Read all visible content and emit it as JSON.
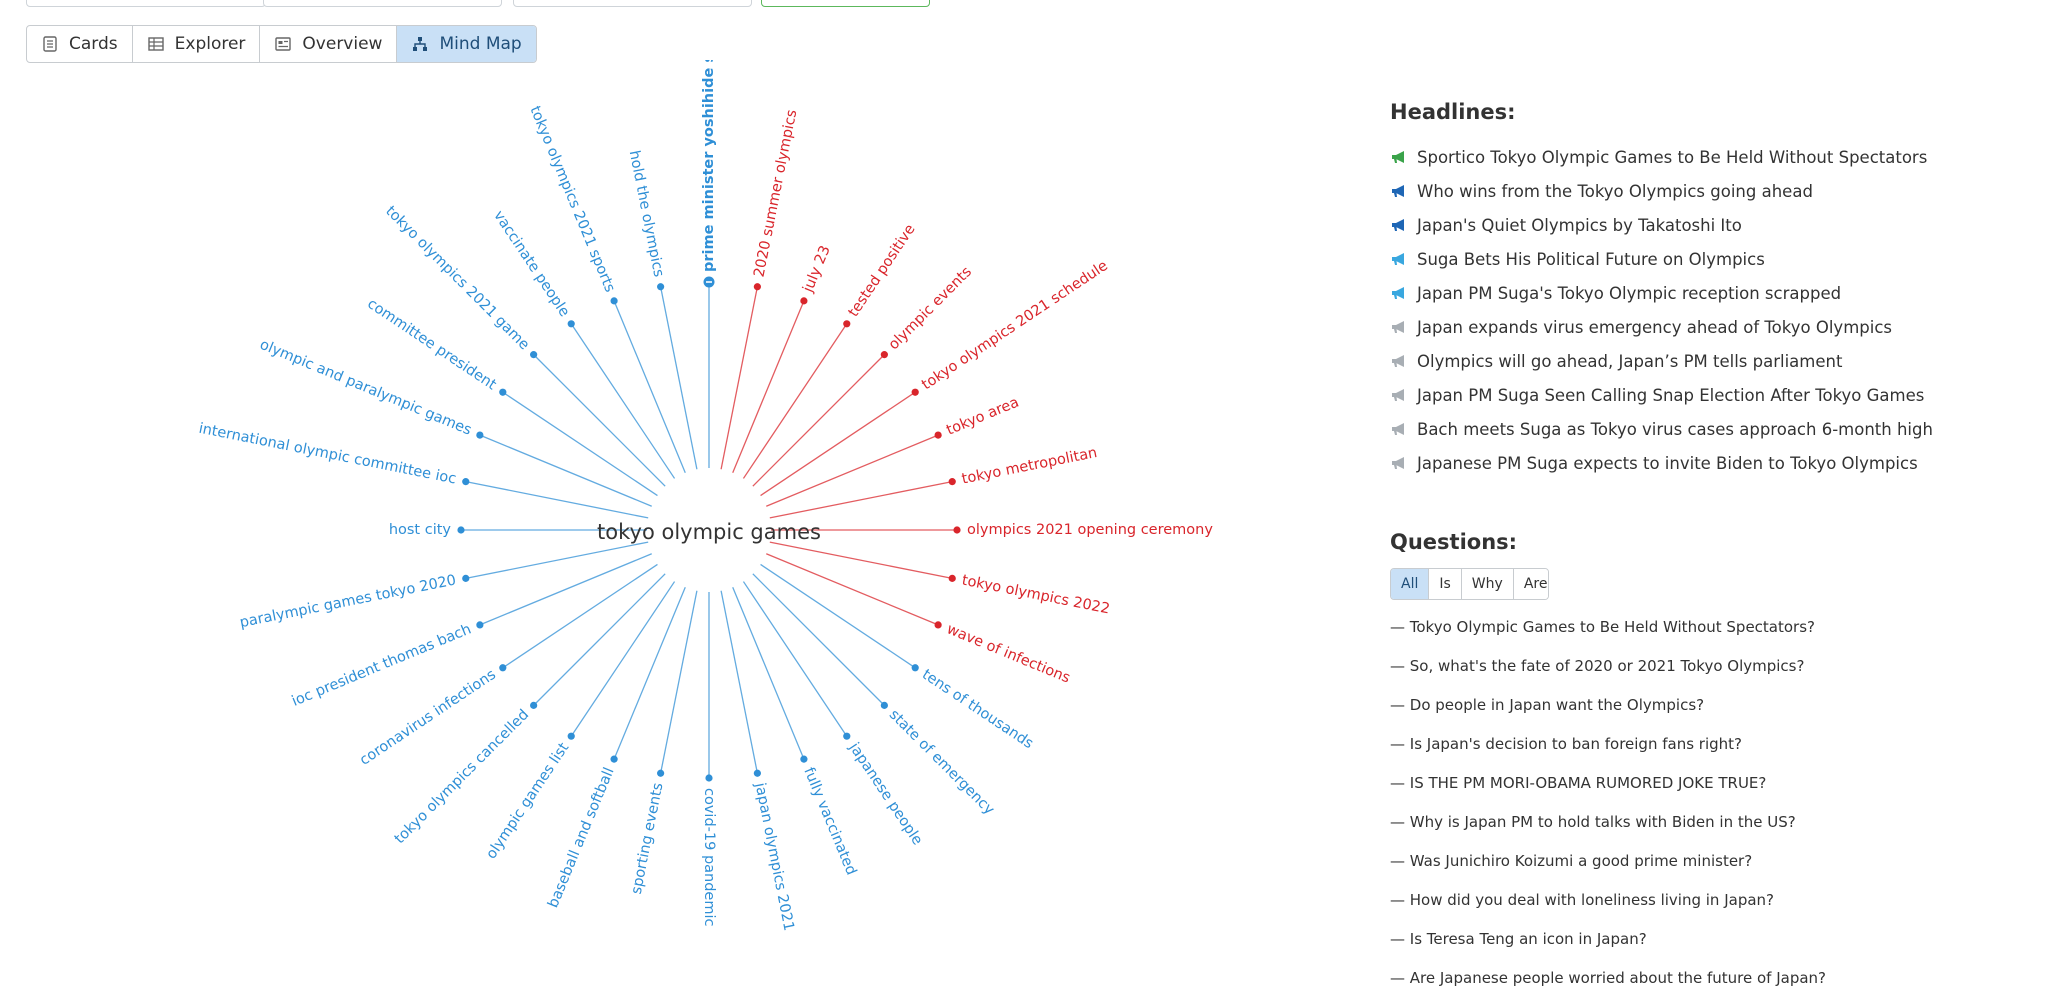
{
  "tabs": [
    {
      "label": "Cards",
      "icon": "cards-icon",
      "active": false
    },
    {
      "label": "Explorer",
      "icon": "table-icon",
      "active": false
    },
    {
      "label": "Overview",
      "icon": "overview-icon",
      "active": false
    },
    {
      "label": "Mind Map",
      "icon": "mind-map-icon",
      "active": true
    }
  ],
  "mindmap": {
    "center": "tokyo olympic games",
    "colors": {
      "red": "#d9252b",
      "blue": "#2f8fd6"
    },
    "nodes": [
      {
        "label": "prime minister yoshihide suga",
        "color": "blue",
        "highlight": true
      },
      {
        "label": "2020 summer olympics",
        "color": "red"
      },
      {
        "label": "july 23",
        "color": "red"
      },
      {
        "label": "tested positive",
        "color": "red"
      },
      {
        "label": "olympic events",
        "color": "red"
      },
      {
        "label": "tokyo olympics 2021 schedule",
        "color": "red"
      },
      {
        "label": "tokyo area",
        "color": "red"
      },
      {
        "label": "tokyo metropolitan",
        "color": "red"
      },
      {
        "label": "olympics 2021 opening ceremony",
        "color": "red"
      },
      {
        "label": "tokyo olympics 2022",
        "color": "red"
      },
      {
        "label": "wave of infections",
        "color": "red"
      },
      {
        "label": "tens of thousands",
        "color": "blue"
      },
      {
        "label": "state of emergency",
        "color": "blue"
      },
      {
        "label": "japanese people",
        "color": "blue"
      },
      {
        "label": "fully vaccinated",
        "color": "blue"
      },
      {
        "label": "japan olympics 2021",
        "color": "blue"
      },
      {
        "label": "covid-19 pandemic",
        "color": "blue"
      },
      {
        "label": "sporting events",
        "color": "blue"
      },
      {
        "label": "baseball and softball",
        "color": "blue"
      },
      {
        "label": "olympic games list",
        "color": "blue"
      },
      {
        "label": "tokyo olympics cancelled",
        "color": "blue"
      },
      {
        "label": "coronavirus infections",
        "color": "blue"
      },
      {
        "label": "ioc president thomas bach",
        "color": "blue"
      },
      {
        "label": "paralympic games tokyo 2020",
        "color": "blue"
      },
      {
        "label": "host city",
        "color": "blue"
      },
      {
        "label": "international olympic committee ioc",
        "color": "blue"
      },
      {
        "label": "olympic and paralympic games",
        "color": "blue"
      },
      {
        "label": "committee president",
        "color": "blue"
      },
      {
        "label": "tokyo olympics 2021 game",
        "color": "blue"
      },
      {
        "label": "vaccinate people",
        "color": "blue"
      },
      {
        "label": "tokyo olympics 2021 sports",
        "color": "blue"
      },
      {
        "label": "hold the olympics",
        "color": "blue"
      }
    ]
  },
  "headlines": {
    "title": "Headlines:",
    "items": [
      {
        "text": "Sportico Tokyo Olympic Games to Be Held Without Spectators",
        "icon": "megaphone-green-icon",
        "color": "#3aa34a"
      },
      {
        "text": "Who wins from the Tokyo Olympics going ahead",
        "icon": "megaphone-blue-icon",
        "color": "#1e66b5"
      },
      {
        "text": "Japan's Quiet Olympics by Takatoshi Ito",
        "icon": "megaphone-blue-icon",
        "color": "#1e66b5"
      },
      {
        "text": "Suga Bets His Political Future on Olympics",
        "icon": "megaphone-lightblue-icon",
        "color": "#39a7df"
      },
      {
        "text": "Japan PM Suga's Tokyo Olympic reception scrapped",
        "icon": "megaphone-lightblue-icon",
        "color": "#39a7df"
      },
      {
        "text": "Japan expands virus emergency ahead of Tokyo Olympics",
        "icon": "megaphone-gray-icon",
        "color": "#a8aeb4"
      },
      {
        "text": "Olympics will go ahead, Japan’s PM tells parliament",
        "icon": "megaphone-gray-icon",
        "color": "#a8aeb4"
      },
      {
        "text": "Japan PM Suga Seen Calling Snap Election After Tokyo Games",
        "icon": "megaphone-gray-icon",
        "color": "#a8aeb4"
      },
      {
        "text": "Bach meets Suga as Tokyo virus cases approach 6-month high",
        "icon": "megaphone-gray-icon",
        "color": "#a8aeb4"
      },
      {
        "text": "Japanese PM Suga expects to invite Biden to Tokyo Olympics",
        "icon": "megaphone-gray-icon",
        "color": "#a8aeb4"
      }
    ]
  },
  "questions": {
    "title": "Questions:",
    "filters": [
      {
        "label": "All",
        "active": true
      },
      {
        "label": "Is",
        "active": false
      },
      {
        "label": "Why",
        "active": false
      },
      {
        "label": "Are",
        "active": false
      }
    ],
    "items": [
      "— Tokyo Olympic Games to Be Held Without Spectators?",
      "— So, what's the fate of 2020 or 2021 Tokyo Olympics?",
      "— Do people in Japan want the Olympics?",
      "— Is Japan's decision to ban foreign fans right?",
      "— IS THE PM MORI-OBAMA RUMORED JOKE TRUE?",
      "— Why is Japan PM to hold talks with Biden in the US?",
      "— Was Junichiro Koizumi a good prime minister?",
      "— How did you deal with loneliness living in Japan?",
      "— Is Teresa Teng an icon in Japan?",
      "— Are Japanese people worried about the future of Japan?"
    ]
  }
}
